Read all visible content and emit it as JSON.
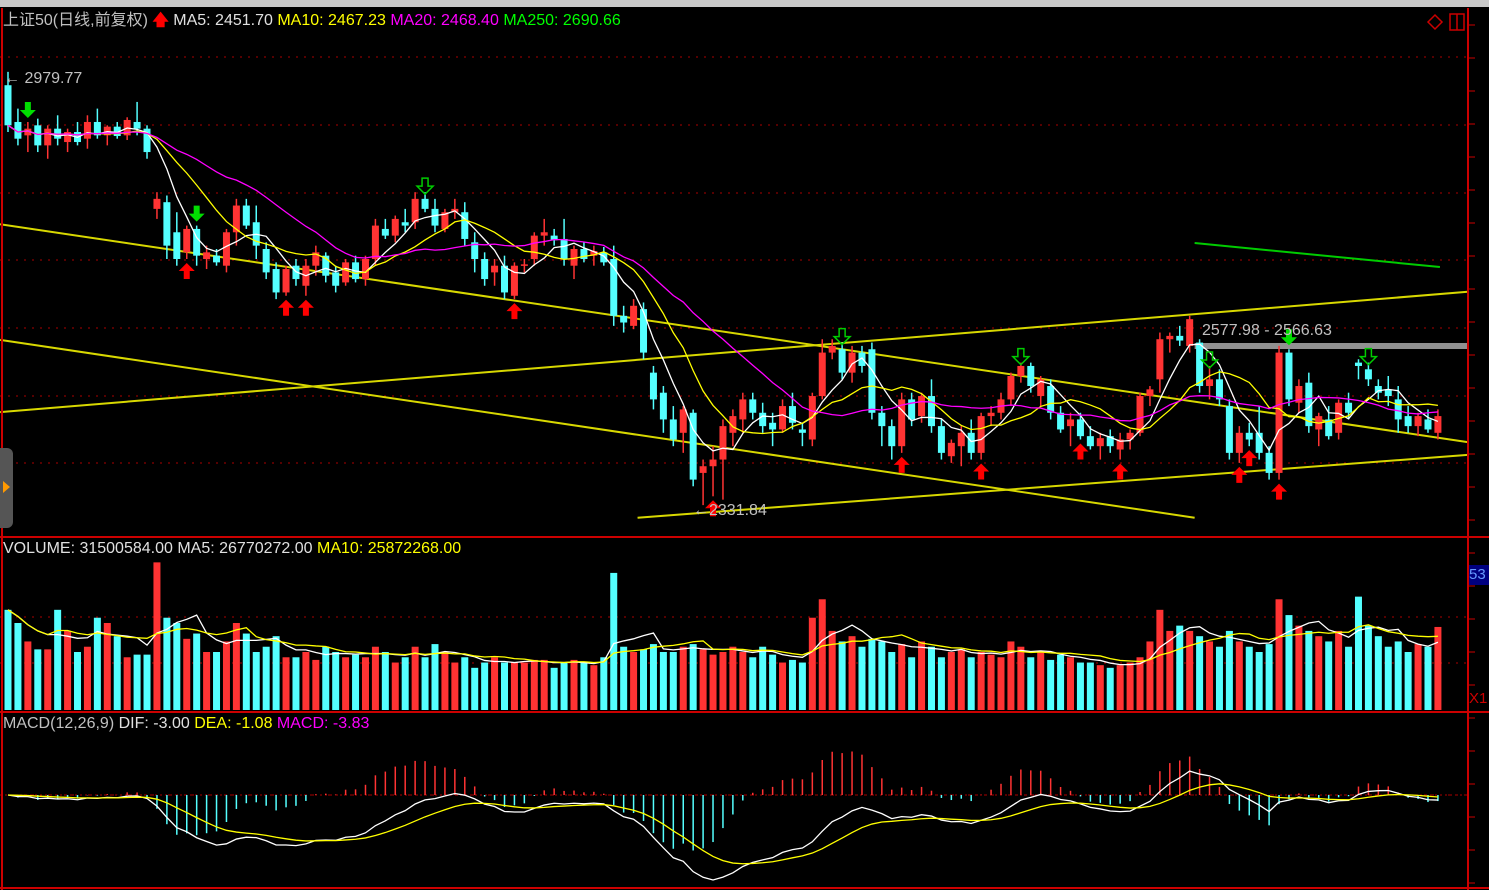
{
  "header": {
    "title": "上证50(日线,前复权)",
    "ma5": "MA5: 2451.70",
    "ma10": "MA10: 2467.23",
    "ma20": "MA20: 2468.40",
    "ma250": "MA250: 2690.66",
    "trend_icon": "red-up-arrow"
  },
  "annotations": {
    "high_label": "2979.77",
    "low_label": "2331.84",
    "range_label": "2577.98 - 2566.63"
  },
  "volume_header": {
    "volume": "VOLUME: 31500584.00",
    "ma5": "MA5: 26770272.00",
    "ma10": "MA10: 25872268.00"
  },
  "macd_header": {
    "name": "MACD(12,26,9)",
    "dif": "DIF: -3.00",
    "dea": "DEA: -1.08",
    "macd": "MACD: -3.83"
  },
  "right_axis": {
    "volume_badge": "53",
    "zoom_badge": "X1"
  },
  "colors": {
    "up": "#ff3333",
    "down": "#54ffff",
    "ma5": "#ffffff",
    "ma10": "#ffff00",
    "ma20": "#ff00ff",
    "grid": "#aa0000",
    "trendline": "#d8d800",
    "trendline_green": "#00cc00"
  },
  "chart_data": {
    "type": "candlestick",
    "price_range": [
      2331.84,
      2979.77
    ],
    "ohlc": [
      [
        2960,
        2980,
        2890,
        2900
      ],
      [
        2905,
        2925,
        2870,
        2880
      ],
      [
        2885,
        2905,
        2860,
        2895
      ],
      [
        2900,
        2910,
        2860,
        2870
      ],
      [
        2870,
        2900,
        2850,
        2895
      ],
      [
        2895,
        2915,
        2870,
        2880
      ],
      [
        2875,
        2895,
        2860,
        2890
      ],
      [
        2890,
        2905,
        2870,
        2875
      ],
      [
        2880,
        2915,
        2865,
        2905
      ],
      [
        2905,
        2925,
        2880,
        2885
      ],
      [
        2885,
        2900,
        2870,
        2898
      ],
      [
        2898,
        2905,
        2880,
        2884
      ],
      [
        2885,
        2912,
        2878,
        2908
      ],
      [
        2905,
        2935,
        2885,
        2895
      ],
      [
        2895,
        2900,
        2850,
        2860
      ],
      [
        2775,
        2800,
        2760,
        2790
      ],
      [
        2785,
        2795,
        2700,
        2720
      ],
      [
        2740,
        2770,
        2690,
        2700
      ],
      [
        2710,
        2750,
        2700,
        2745
      ],
      [
        2745,
        2750,
        2690,
        2705
      ],
      [
        2700,
        2720,
        2685,
        2710
      ],
      [
        2705,
        2715,
        2690,
        2695
      ],
      [
        2690,
        2745,
        2680,
        2740
      ],
      [
        2740,
        2790,
        2720,
        2780
      ],
      [
        2780,
        2790,
        2745,
        2750
      ],
      [
        2755,
        2780,
        2700,
        2720
      ],
      [
        2715,
        2725,
        2670,
        2680
      ],
      [
        2685,
        2695,
        2640,
        2650
      ],
      [
        2650,
        2690,
        2645,
        2685
      ],
      [
        2690,
        2700,
        2660,
        2670
      ],
      [
        2660,
        2700,
        2645,
        2690
      ],
      [
        2690,
        2720,
        2675,
        2710
      ],
      [
        2705,
        2710,
        2665,
        2675
      ],
      [
        2680,
        2690,
        2650,
        2660
      ],
      [
        2665,
        2700,
        2660,
        2695
      ],
      [
        2695,
        2705,
        2665,
        2670
      ],
      [
        2670,
        2705,
        2660,
        2700
      ],
      [
        2700,
        2760,
        2690,
        2750
      ],
      [
        2745,
        2760,
        2730,
        2735
      ],
      [
        2735,
        2765,
        2725,
        2760
      ],
      [
        2755,
        2775,
        2740,
        2750
      ],
      [
        2755,
        2800,
        2745,
        2790
      ],
      [
        2790,
        2800,
        2770,
        2775
      ],
      [
        2775,
        2790,
        2740,
        2750
      ],
      [
        2745,
        2775,
        2740,
        2770
      ],
      [
        2770,
        2790,
        2760,
        2775
      ],
      [
        2770,
        2785,
        2720,
        2730
      ],
      [
        2725,
        2740,
        2680,
        2700
      ],
      [
        2700,
        2710,
        2660,
        2670
      ],
      [
        2680,
        2700,
        2660,
        2690
      ],
      [
        2690,
        2705,
        2640,
        2650
      ],
      [
        2645,
        2695,
        2640,
        2690
      ],
      [
        2690,
        2700,
        2680,
        2692
      ],
      [
        2700,
        2740,
        2690,
        2735
      ],
      [
        2735,
        2760,
        2720,
        2740
      ],
      [
        2735,
        2745,
        2720,
        2728
      ],
      [
        2730,
        2760,
        2690,
        2700
      ],
      [
        2690,
        2720,
        2670,
        2715
      ],
      [
        2715,
        2725,
        2695,
        2700
      ],
      [
        2705,
        2720,
        2690,
        2712
      ],
      [
        2710,
        2718,
        2690,
        2695
      ],
      [
        2700,
        2720,
        2600,
        2615
      ],
      [
        2615,
        2630,
        2590,
        2605
      ],
      [
        2600,
        2640,
        2595,
        2630
      ],
      [
        2625,
        2635,
        2550,
        2560
      ],
      [
        2530,
        2540,
        2475,
        2490
      ],
      [
        2500,
        2510,
        2440,
        2460
      ],
      [
        2460,
        2480,
        2420,
        2430
      ],
      [
        2440,
        2480,
        2410,
        2475
      ],
      [
        2470,
        2475,
        2360,
        2370
      ],
      [
        2380,
        2400,
        2331.84,
        2390
      ],
      [
        2390,
        2420,
        2345,
        2400
      ],
      [
        2400,
        2460,
        2340,
        2450
      ],
      [
        2440,
        2475,
        2420,
        2465
      ],
      [
        2460,
        2500,
        2440,
        2490
      ],
      [
        2490,
        2500,
        2460,
        2470
      ],
      [
        2470,
        2485,
        2440,
        2450
      ],
      [
        2455,
        2470,
        2420,
        2445
      ],
      [
        2445,
        2490,
        2440,
        2480
      ],
      [
        2480,
        2500,
        2445,
        2455
      ],
      [
        2445,
        2455,
        2420,
        2440
      ],
      [
        2430,
        2500,
        2420,
        2495
      ],
      [
        2495,
        2580,
        2490,
        2560
      ],
      [
        2560,
        2580,
        2550,
        2570
      ],
      [
        2565,
        2575,
        2520,
        2530
      ],
      [
        2530,
        2570,
        2515,
        2560
      ],
      [
        2560,
        2570,
        2530,
        2540
      ],
      [
        2565,
        2575,
        2460,
        2470
      ],
      [
        2470,
        2480,
        2420,
        2450
      ],
      [
        2450,
        2460,
        2400,
        2420
      ],
      [
        2420,
        2500,
        2410,
        2490
      ],
      [
        2490,
        2500,
        2450,
        2460
      ],
      [
        2465,
        2500,
        2455,
        2495
      ],
      [
        2495,
        2520,
        2440,
        2450
      ],
      [
        2450,
        2460,
        2400,
        2410
      ],
      [
        2405,
        2430,
        2395,
        2425
      ],
      [
        2420,
        2450,
        2390,
        2440
      ],
      [
        2440,
        2460,
        2400,
        2410
      ],
      [
        2410,
        2470,
        2400,
        2465
      ],
      [
        2465,
        2480,
        2450,
        2470
      ],
      [
        2470,
        2500,
        2460,
        2490
      ],
      [
        2490,
        2530,
        2480,
        2525
      ],
      [
        2525,
        2545,
        2515,
        2540
      ],
      [
        2540,
        2545,
        2500,
        2510
      ],
      [
        2495,
        2525,
        2480,
        2520
      ],
      [
        2510,
        2520,
        2460,
        2470
      ],
      [
        2470,
        2480,
        2440,
        2445
      ],
      [
        2450,
        2470,
        2420,
        2460
      ],
      [
        2460,
        2470,
        2430,
        2435
      ],
      [
        2435,
        2450,
        2415,
        2420
      ],
      [
        2420,
        2440,
        2400,
        2432
      ],
      [
        2435,
        2445,
        2410,
        2420
      ],
      [
        2415,
        2440,
        2400,
        2430
      ],
      [
        2430,
        2445,
        2415,
        2440
      ],
      [
        2440,
        2500,
        2435,
        2495
      ],
      [
        2495,
        2510,
        2480,
        2505
      ],
      [
        2520,
        2590,
        2500,
        2580
      ],
      [
        2580,
        2590,
        2560,
        2585
      ],
      [
        2585,
        2600,
        2570,
        2578
      ],
      [
        2570,
        2615,
        2560,
        2610
      ],
      [
        2575,
        2580,
        2500,
        2510
      ],
      [
        2510,
        2540,
        2490,
        2520
      ],
      [
        2520,
        2535,
        2480,
        2490
      ],
      [
        2480,
        2490,
        2400,
        2410
      ],
      [
        2410,
        2450,
        2395,
        2440
      ],
      [
        2440,
        2455,
        2420,
        2430
      ],
      [
        2440,
        2480,
        2400,
        2410
      ],
      [
        2410,
        2420,
        2370,
        2380
      ],
      [
        2380,
        2570,
        2370,
        2560
      ],
      [
        2560,
        2565,
        2480,
        2490
      ],
      [
        2485,
        2520,
        2470,
        2510
      ],
      [
        2515,
        2530,
        2440,
        2450
      ],
      [
        2445,
        2470,
        2420,
        2465
      ],
      [
        2460,
        2480,
        2430,
        2435
      ],
      [
        2440,
        2490,
        2430,
        2485
      ],
      [
        2485,
        2500,
        2460,
        2470
      ],
      [
        2545,
        2550,
        2520,
        2540
      ],
      [
        2535,
        2545,
        2510,
        2520
      ],
      [
        2510,
        2520,
        2490,
        2500
      ],
      [
        2505,
        2525,
        2480,
        2495
      ],
      [
        2490,
        2510,
        2440,
        2460
      ],
      [
        2465,
        2480,
        2440,
        2450
      ],
      [
        2450,
        2470,
        2435,
        2465
      ],
      [
        2460,
        2475,
        2440,
        2445
      ],
      [
        2440,
        2475,
        2430,
        2465
      ]
    ],
    "volume": [
      38000000.0,
      33000000.0,
      26000000.0,
      23000000.0,
      23000000.0,
      38000000.0,
      30000000.0,
      22000000.0,
      24000000.0,
      35000000.0,
      33000000.0,
      28000000.0,
      20000000.0,
      21000000.0,
      21000000.0,
      56000000.0,
      35000000.0,
      33000000.0,
      27000000.0,
      29000000.0,
      22000000.0,
      22000000.0,
      26000000.0,
      33000000.0,
      29000000.0,
      22000000.0,
      24000000.0,
      28000000.0,
      20000000.0,
      20000000.0,
      22000000.0,
      19000000.0,
      24000000.0,
      22000000.0,
      20000000.0,
      21000000.0,
      20000000.0,
      24000000.0,
      22000000.0,
      18000000.0,
      20000000.0,
      24000000.0,
      20000000.0,
      25000000.0,
      22000000.0,
      18000000.0,
      20000000.0,
      16000000.0,
      18000000.0,
      20000000.0,
      18000000.0,
      18000000.0,
      18000000.0,
      19000000.0,
      19000000.0,
      16000000.0,
      18000000.0,
      19000000.0,
      18000000.0,
      17000000.0,
      20000000.0,
      52000000.0,
      24000000.0,
      22000000.0,
      23000000.0,
      25000000.0,
      22000000.0,
      22000000.0,
      24000000.0,
      25000000.0,
      23000000.0,
      21000000.0,
      22000000.0,
      24000000.0,
      22000000.0,
      20000000.0,
      24000000.0,
      21000000.0,
      18000000.0,
      19000000.0,
      18000000.0,
      35000000.0,
      42000000.0,
      30000000.0,
      26000000.0,
      28000000.0,
      24000000.0,
      27000000.0,
      26000000.0,
      22000000.0,
      25000000.0,
      20000000.0,
      26000000.0,
      24000000.0,
      20000000.0,
      22000000.0,
      23000000.0,
      20000000.0,
      22000000.0,
      21000000.0,
      20000000.0,
      26000000.0,
      24000000.0,
      20000000.0,
      22000000.0,
      19000000.0,
      21000000.0,
      20000000.0,
      18000000.0,
      18000000.0,
      17000000.0,
      16000000.0,
      17000000.0,
      18000000.0,
      20000000.0,
      26000000.0,
      38000000.0,
      30000000.0,
      32000000.0,
      30000000.0,
      28000000.0,
      26000000.0,
      24000000.0,
      30000000.0,
      26000000.0,
      24000000.0,
      22000000.0,
      25000000.0,
      42000000.0,
      36000000.0,
      32000000.0,
      30000000.0,
      28000000.0,
      26000000.0,
      30000000.0,
      24000000.0,
      43000000.0,
      32000000.0,
      28000000.0,
      24000000.0,
      26000000.0,
      22000000.0,
      25000000.0,
      24000000.0,
      31500584
    ],
    "volume_axis_max": 55000000.0,
    "signals": {
      "buy": [
        18,
        28,
        30,
        51,
        71,
        90,
        98,
        108,
        112,
        124,
        125,
        128
      ],
      "sell": [
        2,
        19,
        129
      ],
      "sell_outline": [
        42,
        84,
        102,
        121,
        137
      ]
    },
    "trendlines": [
      {
        "from": [
          -0.8,
          2752
        ],
        "to": [
          147,
          2426
        ],
        "color": "yellow"
      },
      {
        "from": [
          -0.8,
          2579
        ],
        "to": [
          119.5,
          2313
        ],
        "color": "yellow"
      },
      {
        "from": [
          -0.8,
          2471
        ],
        "to": [
          147,
          2651
        ],
        "color": "yellow"
      },
      {
        "from": [
          63.4,
          2313
        ],
        "to": [
          147,
          2407
        ],
        "color": "yellow"
      },
      {
        "from": [
          119.5,
          2724
        ],
        "to": [
          144.2,
          2688
        ],
        "color": "green"
      }
    ],
    "range_band": {
      "from_index": 119.5,
      "high": 2577.98,
      "low": 2566.63
    }
  }
}
